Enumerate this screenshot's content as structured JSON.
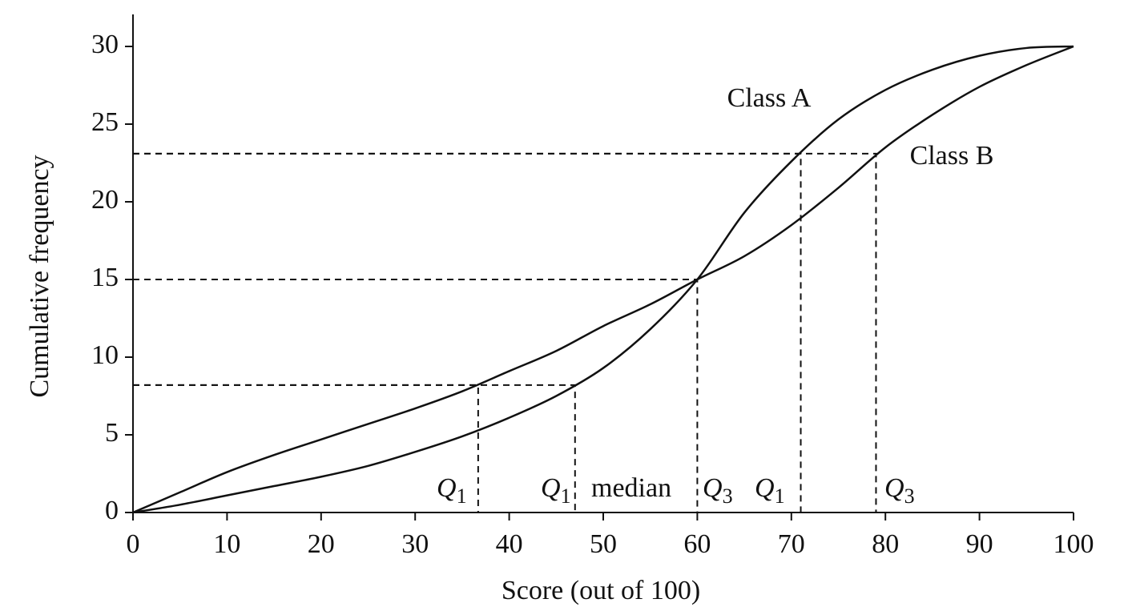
{
  "chart_data": {
    "type": "line",
    "x_label": "Score (out of 100)",
    "y_label": "Cumulative frequency",
    "x": [
      0,
      5,
      10,
      15,
      20,
      25,
      30,
      35,
      40,
      45,
      50,
      55,
      60,
      65,
      70,
      75,
      80,
      85,
      90,
      95,
      100
    ],
    "series": [
      {
        "name": "Class A",
        "color": "#111111",
        "values": [
          0,
          0.5,
          1.1,
          1.7,
          2.3,
          3.0,
          3.9,
          4.9,
          6.1,
          7.5,
          9.3,
          11.8,
          15,
          19.3,
          22.6,
          25.3,
          27.2,
          28.5,
          29.4,
          29.9,
          30
        ]
      },
      {
        "name": "Class B",
        "color": "#111111",
        "values": [
          0,
          1.3,
          2.6,
          3.7,
          4.7,
          5.7,
          6.7,
          7.8,
          9.1,
          10.4,
          12.0,
          13.4,
          15,
          16.5,
          18.5,
          20.9,
          23.5,
          25.6,
          27.4,
          28.8,
          30
        ]
      }
    ],
    "dashed_lines": [
      {
        "x": 36.7,
        "y": 8.2
      },
      {
        "x": 47,
        "y": 8.2
      },
      {
        "x": 60,
        "y": 15
      },
      {
        "x": 71,
        "y": 23.1
      },
      {
        "x": 79,
        "y": 23.1
      }
    ],
    "annotations": [
      {
        "letter": "Q",
        "sub": "1"
      },
      {
        "letter": "Q",
        "sub": "1"
      },
      {
        "letter": "median"
      },
      {
        "letter": "Q",
        "sub": "3"
      },
      {
        "letter": "Q",
        "sub": "1"
      },
      {
        "letter": "Q",
        "sub": "3"
      }
    ],
    "xlim": [
      0,
      100
    ],
    "ylim": [
      0,
      30
    ],
    "xticks": [
      0,
      10,
      20,
      30,
      40,
      50,
      60,
      70,
      80,
      90,
      100
    ],
    "yticks": [
      0,
      5,
      10,
      15,
      20,
      25,
      30
    ],
    "grid": false
  }
}
